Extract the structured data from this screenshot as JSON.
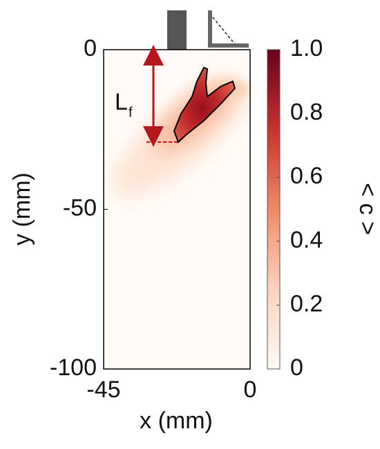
{
  "chart_data": {
    "type": "heatmap",
    "xlabel": "x (mm)",
    "ylabel": "y (mm)",
    "xlim": [
      -45,
      0
    ],
    "xticks": [
      -45,
      0
    ],
    "ylim": [
      -100,
      0
    ],
    "yticks": [
      0,
      -50,
      -100
    ],
    "annotation": {
      "text": "L",
      "subscript": "f"
    },
    "colorbar": {
      "label": "< c >",
      "lim": [
        0,
        1
      ],
      "ticks": [
        0,
        0.2,
        0.4,
        0.6,
        0.8,
        {
          "value": 1,
          "label": "1.0"
        }
      ],
      "colors": [
        "#fffaf6",
        "#fbd3bd",
        "#f08a6a",
        "#c7322f",
        "#67001a"
      ]
    }
  }
}
